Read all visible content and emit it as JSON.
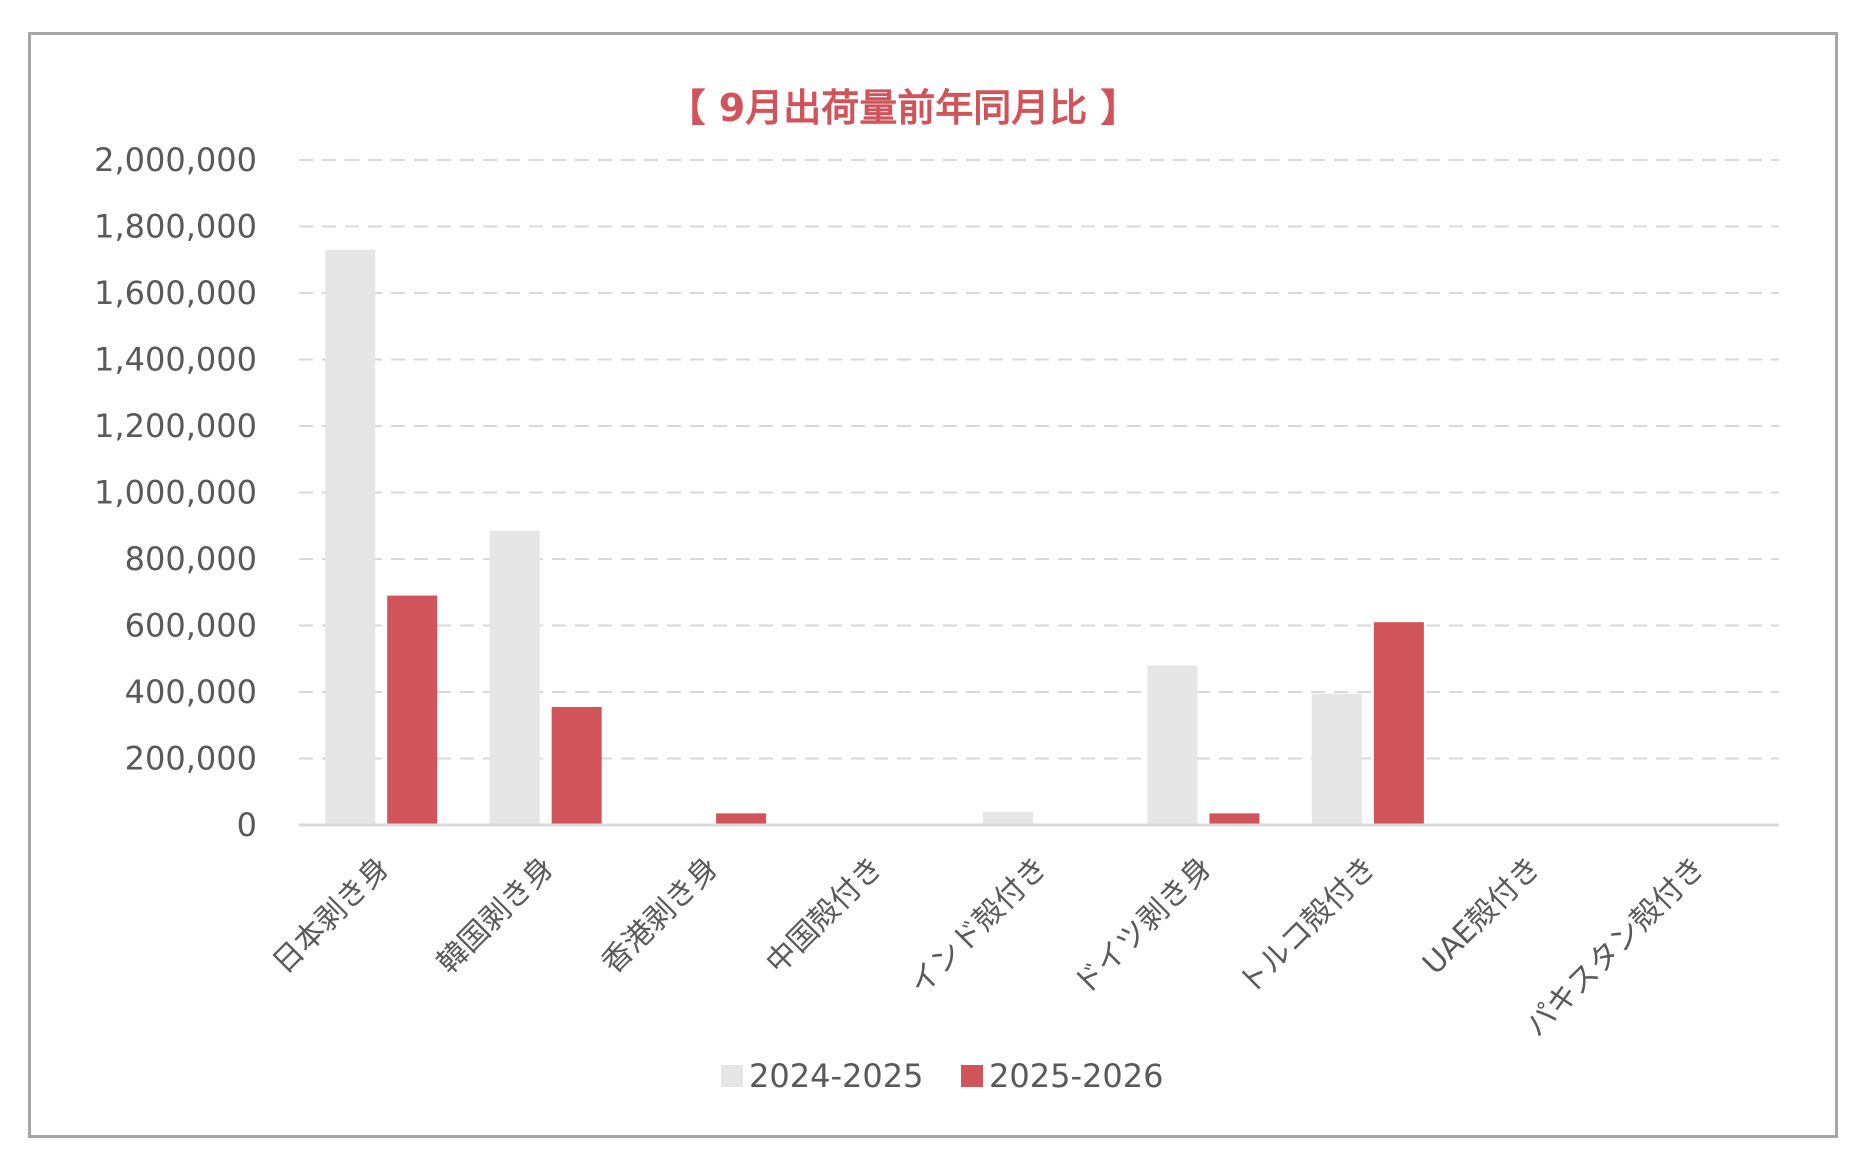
{
  "chart_data": {
    "type": "bar",
    "title": "【 9月出荷量前年同月比 】",
    "categories": [
      "日本剥き身",
      "韓国剥き身",
      "香港剥き身",
      "中国殻付き",
      "インド殻付き",
      "ドイツ剥き身",
      "トルコ殻付き",
      "UAE殻付き",
      "パキスタン殻付き"
    ],
    "series": [
      {
        "name": "2024-2025",
        "color": "#e6e6e6",
        "values": [
          1730000,
          885000,
          0,
          0,
          40000,
          480000,
          395000,
          0,
          0
        ]
      },
      {
        "name": "2025-2026",
        "color": "#d0545a",
        "values": [
          690000,
          355000,
          35000,
          0,
          0,
          35000,
          610000,
          0,
          0
        ]
      }
    ],
    "ylim": [
      0,
      2000000
    ],
    "yticks": [
      "0",
      "200,000",
      "400,000",
      "600,000",
      "800,000",
      "1,000,000",
      "1,200,000",
      "1,400,000",
      "1,600,000",
      "1,800,000",
      "2,000,000"
    ],
    "grid": true,
    "legend": "bottom",
    "xlabel": "",
    "ylabel": ""
  }
}
